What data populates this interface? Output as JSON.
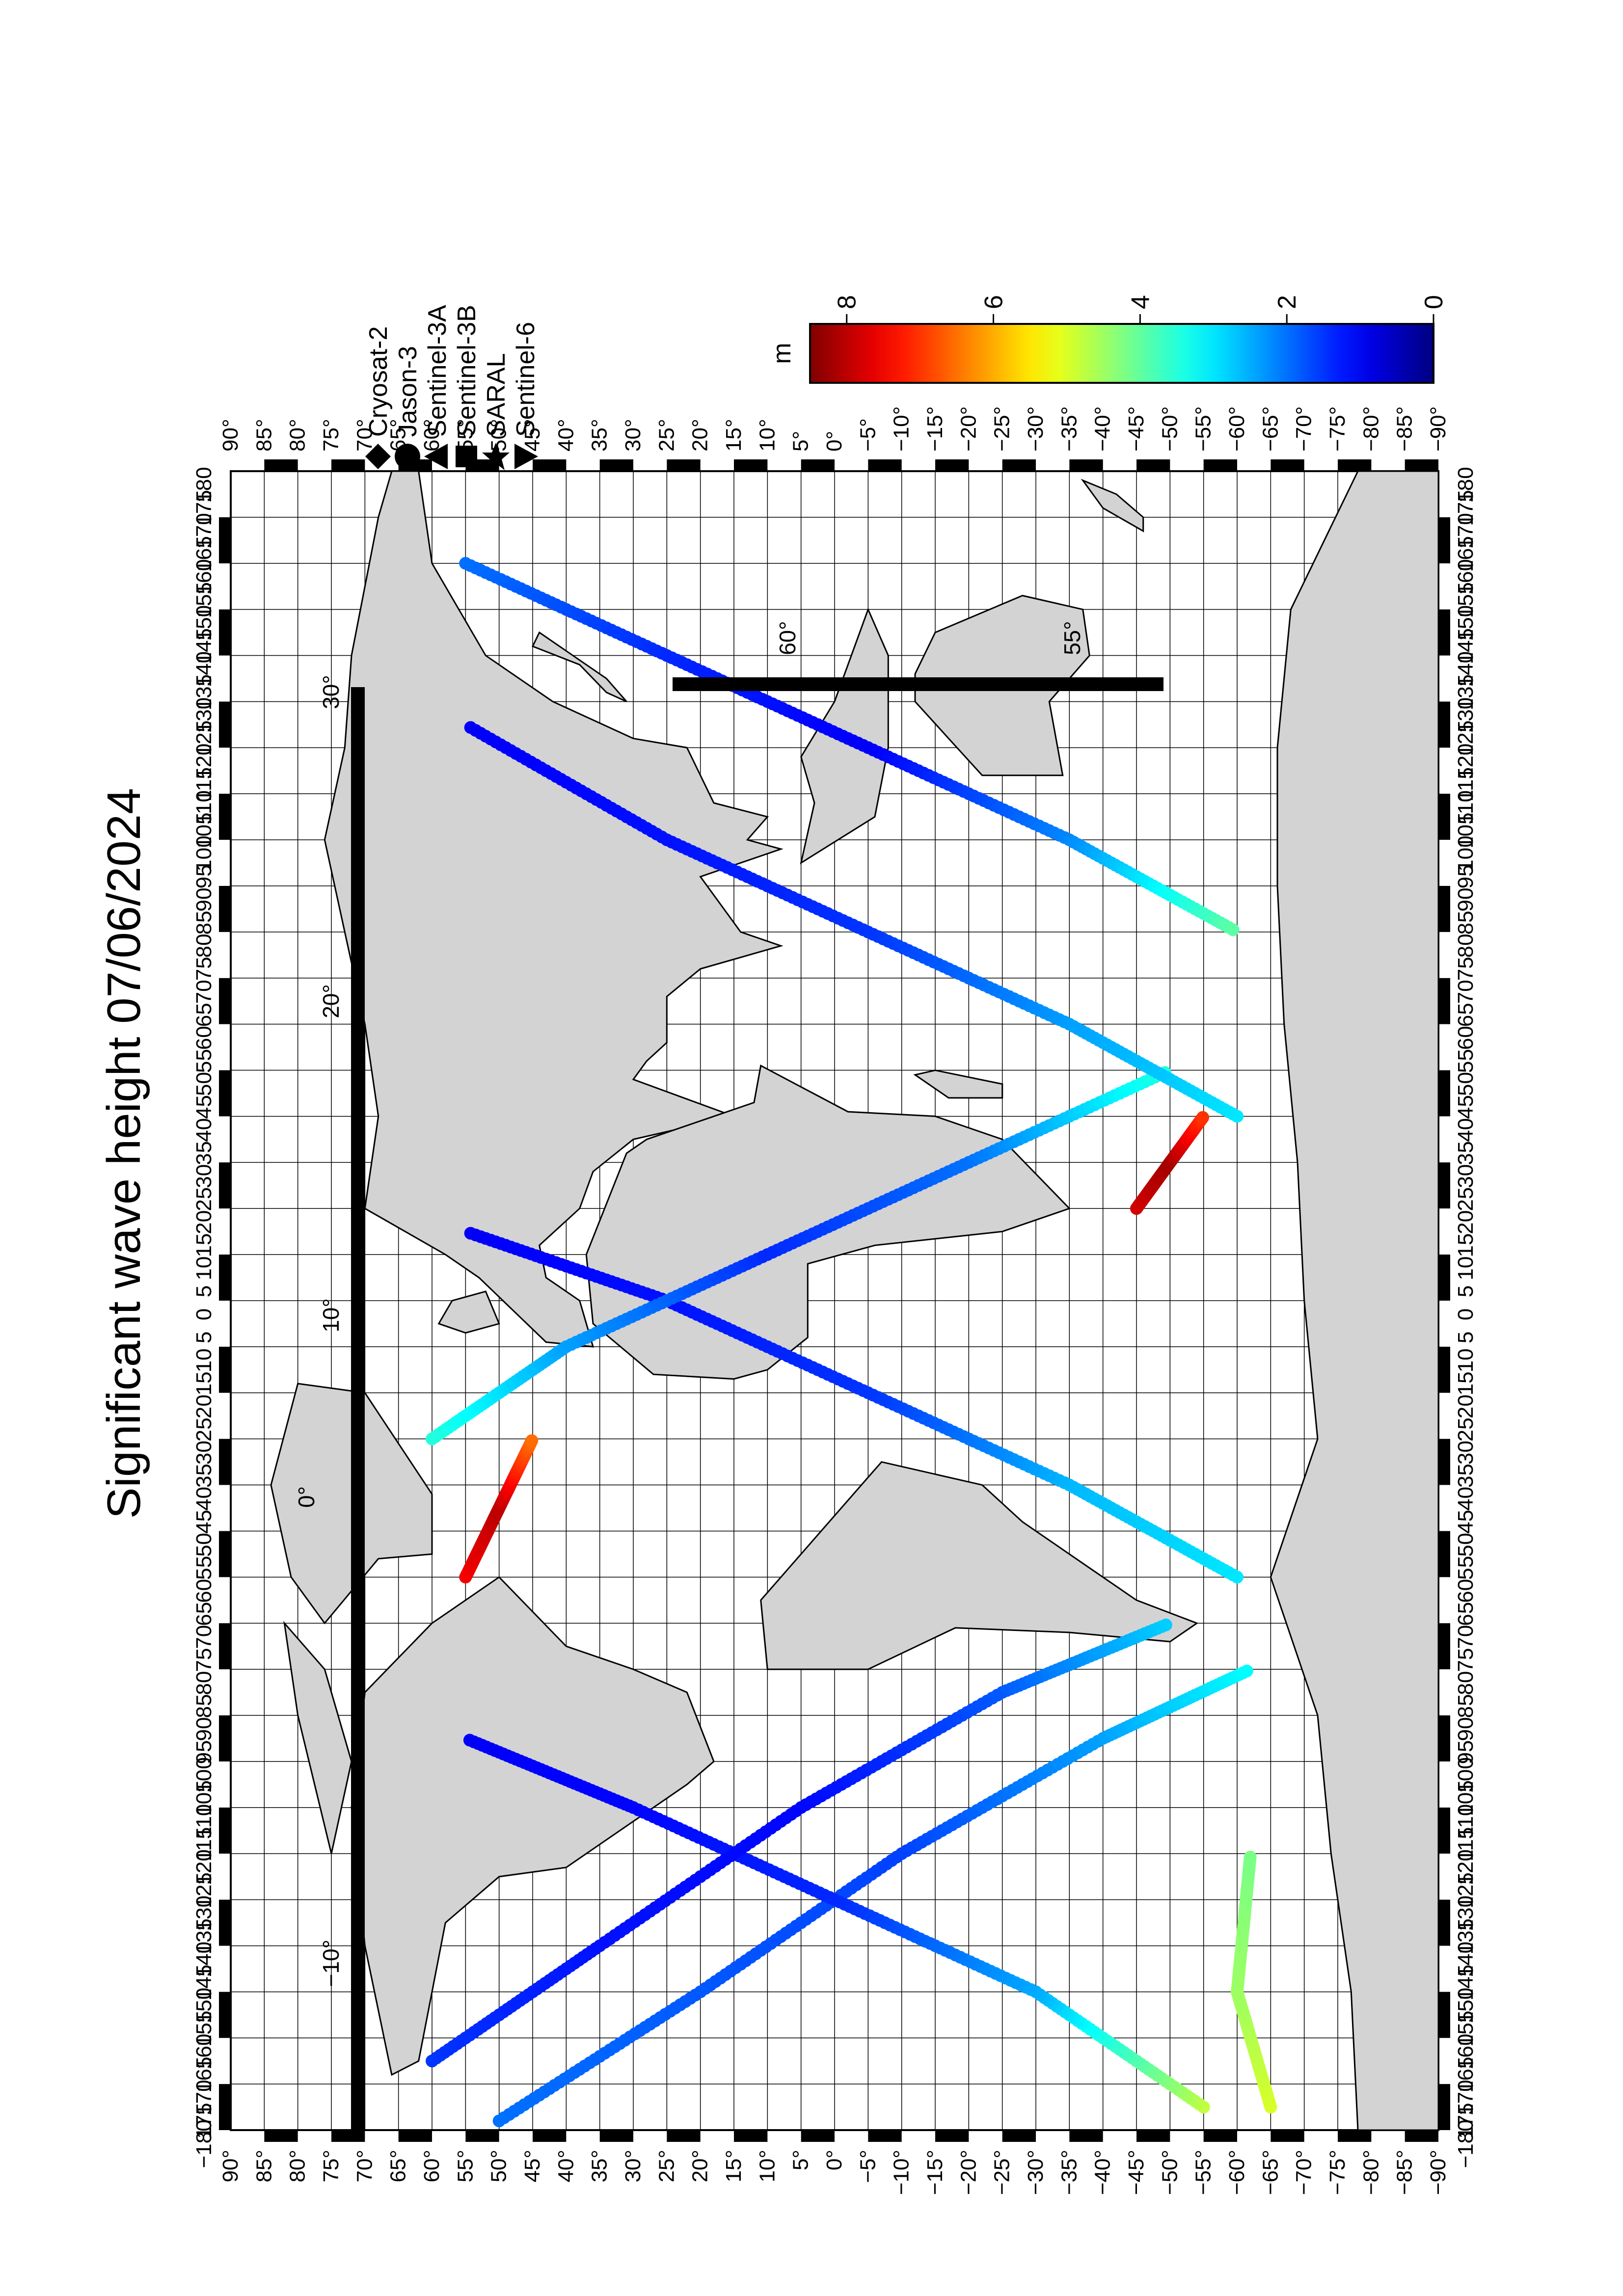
{
  "title": "Significant wave height 07/06/2024",
  "colorbar": {
    "unit": "m",
    "ticks": [
      "8",
      "6",
      "4",
      "2",
      "0"
    ],
    "tick_values": [
      8,
      6,
      4,
      2,
      0
    ],
    "range": [
      0,
      8.5
    ],
    "colormap": "jet",
    "colors_hex": [
      "#00007f",
      "#0000ff",
      "#00ffff",
      "#ffff00",
      "#ff0000",
      "#7f0000"
    ]
  },
  "satellites": [
    {
      "name": "Cryosat-2",
      "marker": "diamond"
    },
    {
      "name": "Jason-3",
      "marker": "circle"
    },
    {
      "name": "Sentinel-3A",
      "marker": "triangle-up"
    },
    {
      "name": "Sentinel-3B",
      "marker": "square"
    },
    {
      "name": "SARAL",
      "marker": "star"
    },
    {
      "name": "Sentinel-6",
      "marker": "triangle-down"
    }
  ],
  "latitude_labels_left": [
    "90°",
    "85°",
    "80°",
    "75°",
    "70°",
    "65°",
    "60°",
    "55°",
    "50°",
    "45°",
    "40°",
    "35°",
    "30°",
    "25°",
    "20°",
    "15°",
    "10°",
    "5°",
    "0°",
    "−5°",
    "−10°",
    "−15°",
    "−20°",
    "−25°",
    "−30°",
    "−35°",
    "−40°",
    "−45°",
    "−50°",
    "−55°",
    "−60°",
    "−65°",
    "−70°",
    "−75°",
    "−80°",
    "−85°",
    "−90°"
  ],
  "latitude_labels_right": [
    "90°",
    "85°",
    "80°",
    "75°",
    "70°",
    "65°",
    "60°",
    "55°",
    "50°",
    "45°",
    "40°",
    "35°",
    "30°",
    "25°",
    "20°",
    "15°",
    "10°",
    "5°",
    "0°",
    "−5°",
    "−10°",
    "−15°",
    "−20°",
    "−25°",
    "−30°",
    "−35°",
    "−40°",
    "−45°",
    "−50°",
    "−55°",
    "−60°",
    "−65°",
    "−70°",
    "−75°",
    "−80°",
    "−85°",
    "−90°"
  ],
  "longitude_labels": [
    "−180",
    "175",
    "170",
    "165",
    "160",
    "155",
    "150",
    "145",
    "140",
    "135",
    "130",
    "125",
    "120",
    "115",
    "110",
    "105",
    "100",
    "95",
    "90",
    "85",
    "80",
    "75",
    "70",
    "65",
    "60",
    "55",
    "50",
    "45",
    "40",
    "35",
    "30",
    "25",
    "20",
    "15",
    "10",
    "5",
    "0",
    "5",
    "10",
    "15",
    "20",
    "25",
    "30",
    "35",
    "40",
    "45",
    "50",
    "55",
    "60",
    "65",
    "70",
    "75",
    "80",
    "85",
    "90",
    "95",
    "100",
    "105",
    "110",
    "115",
    "120",
    "125",
    "130",
    "135",
    "140",
    "145",
    "150",
    "155",
    "160",
    "165",
    "170",
    "175",
    "180"
  ],
  "inset_labels": {
    "north_a": "−10°",
    "north_b": "0°",
    "north_c": "10°",
    "north_d": "20°",
    "north_e": "30°",
    "south_a": "60°",
    "south_b": "55°"
  },
  "map_data": {
    "projection": "equirectangular (rotated 90° on page)",
    "lon_range": [
      -180,
      180
    ],
    "lat_range": [
      -90,
      90
    ],
    "value_unit": "m",
    "tracks": [
      {
        "sat": "Sentinel-6",
        "points": [
          [
            -178,
            50,
            2.0
          ],
          [
            -150,
            20,
            1.8
          ],
          [
            -120,
            -10,
            1.6
          ],
          [
            -95,
            -40,
            2.4
          ],
          [
            -80,
            -62,
            3.2
          ]
        ]
      },
      {
        "sat": "Sentinel-3A",
        "points": [
          [
            -175,
            -55,
            4.8
          ],
          [
            -150,
            -30,
            2.5
          ],
          [
            -130,
            0,
            1.4
          ],
          [
            -110,
            30,
            1.1
          ],
          [
            -95,
            55,
            1.0
          ]
        ]
      },
      {
        "sat": "Jason-3",
        "points": [
          [
            -165,
            60,
            1.5
          ],
          [
            -140,
            35,
            1.2
          ],
          [
            -110,
            5,
            1.1
          ],
          [
            -85,
            -25,
            1.8
          ],
          [
            -70,
            -50,
            2.8
          ]
        ]
      },
      {
        "sat": "Cryosat-2",
        "points": [
          [
            -60,
            -60,
            3.0
          ],
          [
            -40,
            -35,
            2.6
          ],
          [
            -20,
            -5,
            1.5
          ],
          [
            0,
            25,
            1.2
          ],
          [
            15,
            55,
            1.0
          ]
        ]
      },
      {
        "sat": "SARAL",
        "points": [
          [
            -30,
            60,
            3.5
          ],
          [
            -10,
            40,
            2.4
          ],
          [
            10,
            10,
            1.4
          ],
          [
            30,
            -20,
            2.0
          ],
          [
            50,
            -50,
            3.5
          ]
        ]
      },
      {
        "sat": "Sentinel-3B",
        "points": [
          [
            40,
            -60,
            3.0
          ],
          [
            60,
            -35,
            2.4
          ],
          [
            80,
            -5,
            1.5
          ],
          [
            100,
            25,
            1.2
          ],
          [
            125,
            55,
            1.0
          ]
        ]
      },
      {
        "sat": "Sentinel-6",
        "points": [
          [
            160,
            55,
            2.0
          ],
          [
            140,
            25,
            1.4
          ],
          [
            120,
            -5,
            1.0
          ],
          [
            100,
            -35,
            2.2
          ],
          [
            80,
            -60,
            4.0
          ]
        ]
      },
      {
        "sat": "Jason-3",
        "points": [
          [
            -175,
            -65,
            5.0
          ],
          [
            -150,
            -60,
            4.5
          ],
          [
            -120,
            -62,
            4.2
          ]
        ]
      },
      {
        "sat": "Cryosat-2",
        "points": [
          [
            -60,
            55,
            7.5
          ],
          [
            -45,
            50,
            8.0
          ],
          [
            -30,
            45,
            6.5
          ]
        ]
      },
      {
        "sat": "Sentinel-3A",
        "points": [
          [
            20,
            -45,
            7.8
          ],
          [
            30,
            -50,
            8.2
          ],
          [
            40,
            -55,
            7.0
          ]
        ]
      }
    ]
  }
}
